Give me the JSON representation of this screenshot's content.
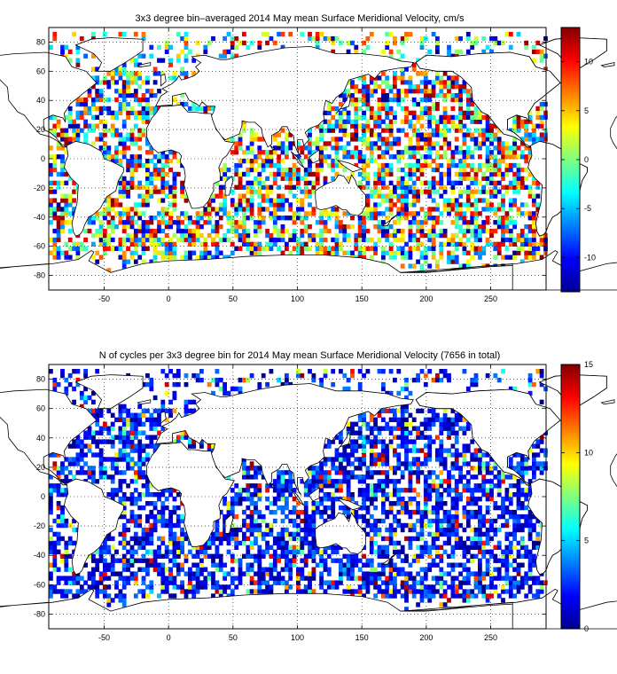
{
  "chart_data": [
    {
      "type": "heatmap",
      "title": "3x3 degree bin–averaged 2014 May mean Surface Meridional Velocity, cm/s",
      "xlim": [
        -93,
        293
      ],
      "ylim": [
        -90,
        90
      ],
      "x_ticks": [
        -50,
        0,
        50,
        100,
        150,
        200,
        250
      ],
      "y_ticks": [
        80,
        60,
        40,
        20,
        0,
        -20,
        -40,
        -60,
        -80
      ],
      "grid": true,
      "colorbar": {
        "range": [
          -13.5,
          13.5
        ],
        "ticks": [
          10,
          5,
          0,
          -5,
          -10
        ],
        "colormap": "jet",
        "placement": "right"
      }
    },
    {
      "type": "heatmap",
      "title": "N of cycles per 3x3 degree bin for 2014 May mean Surface Meridional Velocity (7656 in total)",
      "xlim": [
        -93,
        293
      ],
      "ylim": [
        -90,
        90
      ],
      "x_ticks": [
        -50,
        0,
        50,
        100,
        150,
        200,
        250
      ],
      "y_ticks": [
        80,
        60,
        40,
        20,
        0,
        -20,
        -40,
        -60,
        -80
      ],
      "grid": true,
      "colorbar": {
        "range": [
          0,
          15
        ],
        "ticks": [
          15,
          10,
          5,
          0
        ],
        "colormap": "jet",
        "placement": "right"
      }
    }
  ]
}
